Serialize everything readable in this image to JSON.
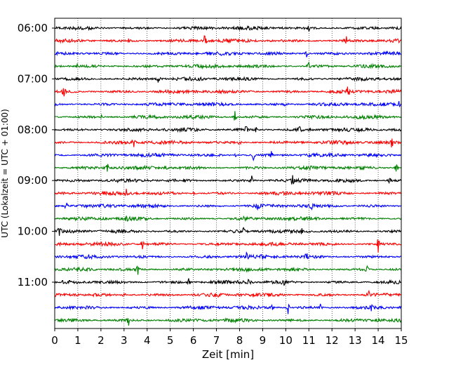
{
  "chart_data": {
    "type": "line",
    "title": "",
    "xlabel": "Zeit  [min]",
    "ylabel": "UTC (Lokalzeit = UTC + 01:00)",
    "xlim": [
      0,
      15
    ],
    "x_ticks": [
      0,
      1,
      2,
      3,
      4,
      5,
      6,
      7,
      8,
      9,
      10,
      11,
      12,
      13,
      14,
      15
    ],
    "y_tick_labels": [
      "06:00",
      "07:00",
      "08:00",
      "09:00",
      "10:00",
      "11:00"
    ],
    "grid": "vertical dotted",
    "legend": "none",
    "colors": [
      "#000000",
      "#ff0000",
      "#0000ff",
      "#008000"
    ],
    "rows": [
      {
        "color": "#000000",
        "events": [
          [
            9.8,
            0.3
          ],
          [
            11.0,
            0.4
          ]
        ]
      },
      {
        "color": "#ff0000",
        "events": [
          [
            3.2,
            0.6
          ],
          [
            6.5,
            1.6
          ],
          [
            12.6,
            1.2
          ]
        ]
      },
      {
        "color": "#0000ff",
        "events": [
          [
            10.9,
            0.8
          ]
        ]
      },
      {
        "color": "#008000",
        "events": [
          [
            1.0,
            1.0
          ],
          [
            11.0,
            0.7
          ]
        ]
      },
      {
        "color": "#000000",
        "events": [
          [
            4.5,
            1.3
          ]
        ]
      },
      {
        "color": "#ff0000",
        "events": [
          [
            0.4,
            1.1
          ],
          [
            8.5,
            0.4
          ],
          [
            12.7,
            1.2
          ]
        ]
      },
      {
        "color": "#0000ff",
        "events": [
          [
            10.0,
            1.1
          ],
          [
            14.9,
            0.6
          ]
        ]
      },
      {
        "color": "#008000",
        "events": [
          [
            2.0,
            0.5
          ],
          [
            7.8,
            1.0
          ]
        ]
      },
      {
        "color": "#000000",
        "events": [
          [
            8.3,
            1.4
          ],
          [
            8.7,
            0.7
          ],
          [
            10.6,
            0.5
          ]
        ]
      },
      {
        "color": "#ff0000",
        "events": [
          [
            3.4,
            1.2
          ],
          [
            8.0,
            0.7
          ],
          [
            14.6,
            1.3
          ]
        ]
      },
      {
        "color": "#0000ff",
        "events": [
          [
            7.8,
            0.8
          ],
          [
            8.6,
            0.9
          ],
          [
            9.4,
            1.0
          ]
        ]
      },
      {
        "color": "#008000",
        "events": [
          [
            2.3,
            1.3
          ],
          [
            4.8,
            0.4
          ],
          [
            14.8,
            1.2
          ]
        ]
      },
      {
        "color": "#000000",
        "events": [
          [
            8.5,
            1.4
          ],
          [
            10.3,
            1.0
          ],
          [
            14.5,
            0.6
          ]
        ]
      },
      {
        "color": "#ff0000",
        "events": [
          [
            3.1,
            0.9
          ],
          [
            6.0,
            0.6
          ]
        ]
      },
      {
        "color": "#0000ff",
        "events": [
          [
            0.5,
            1.0
          ],
          [
            8.8,
            0.7
          ],
          [
            11.1,
            0.6
          ]
        ]
      },
      {
        "color": "#008000",
        "events": [
          [
            3.1,
            1.1
          ],
          [
            8.2,
            0.5
          ]
        ]
      },
      {
        "color": "#000000",
        "events": [
          [
            0.2,
            1.2
          ],
          [
            8.2,
            1.4
          ],
          [
            10.7,
            0.6
          ]
        ]
      },
      {
        "color": "#ff0000",
        "events": [
          [
            3.8,
            0.8
          ],
          [
            10.7,
            0.6
          ],
          [
            14.0,
            1.2
          ]
        ]
      },
      {
        "color": "#0000ff",
        "events": [
          [
            8.3,
            0.9
          ],
          [
            9.0,
            0.5
          ],
          [
            10.9,
            1.1
          ]
        ]
      },
      {
        "color": "#008000",
        "events": [
          [
            3.6,
            1.0
          ],
          [
            13.5,
            1.0
          ]
        ]
      },
      {
        "color": "#000000",
        "events": [
          [
            5.8,
            0.5
          ],
          [
            8.4,
            1.0
          ],
          [
            9.9,
            0.7
          ]
        ]
      },
      {
        "color": "#ff0000",
        "events": [
          [
            3.0,
            0.8
          ],
          [
            7.0,
            0.6
          ],
          [
            13.6,
            1.1
          ]
        ]
      },
      {
        "color": "#0000ff",
        "events": [
          [
            9.4,
            0.6
          ],
          [
            10.1,
            1.0
          ],
          [
            11.5,
            0.5
          ],
          [
            13.7,
            0.6
          ]
        ]
      },
      {
        "color": "#008000",
        "events": [
          [
            3.2,
            1.0
          ],
          [
            14.0,
            0.8
          ]
        ]
      }
    ]
  }
}
